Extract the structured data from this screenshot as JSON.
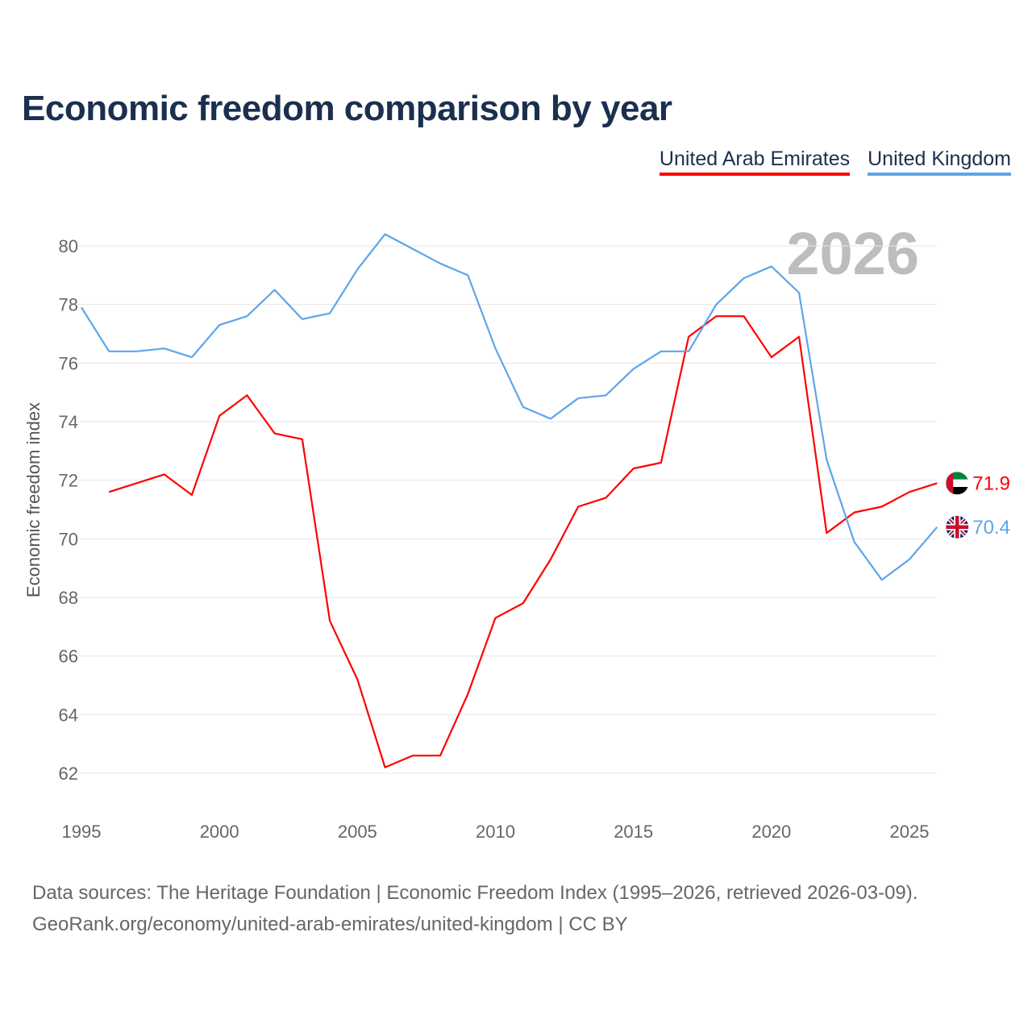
{
  "chart_data": {
    "type": "line",
    "title": "Economic freedom comparison by year",
    "xlabel": "",
    "ylabel": "Economic freedom index",
    "xlim": [
      1995,
      2026
    ],
    "ylim": [
      61,
      81
    ],
    "xticks": [
      1995,
      2000,
      2005,
      2010,
      2015,
      2020,
      2025
    ],
    "yticks": [
      62,
      64,
      66,
      68,
      70,
      72,
      74,
      76,
      78,
      80
    ],
    "grid": true,
    "legend_position": "top-right",
    "watermark_year": "2026",
    "series": [
      {
        "name": "United Arab Emirates",
        "color": "#ff0000",
        "end_label": "71.9",
        "flag": "uae-flag",
        "x": [
          1996,
          1997,
          1998,
          1999,
          2000,
          2001,
          2002,
          2003,
          2004,
          2005,
          2006,
          2007,
          2008,
          2009,
          2010,
          2011,
          2012,
          2013,
          2014,
          2015,
          2016,
          2017,
          2018,
          2019,
          2020,
          2021,
          2022,
          2023,
          2024,
          2025,
          2026
        ],
        "y": [
          71.6,
          71.9,
          72.2,
          71.5,
          74.2,
          74.9,
          73.6,
          73.4,
          67.2,
          65.2,
          62.2,
          62.6,
          62.6,
          64.7,
          67.3,
          67.8,
          69.3,
          71.1,
          71.4,
          72.4,
          72.6,
          76.9,
          77.6,
          77.6,
          76.2,
          76.9,
          70.2,
          70.9,
          71.1,
          71.6,
          71.9
        ]
      },
      {
        "name": "United Kingdom",
        "color": "#5da5ea",
        "end_label": "70.4",
        "flag": "uk-flag",
        "x": [
          1995,
          1996,
          1997,
          1998,
          1999,
          2000,
          2001,
          2002,
          2003,
          2004,
          2005,
          2006,
          2007,
          2008,
          2009,
          2010,
          2011,
          2012,
          2013,
          2014,
          2015,
          2016,
          2017,
          2018,
          2019,
          2020,
          2021,
          2022,
          2023,
          2024,
          2025,
          2026
        ],
        "y": [
          77.9,
          76.4,
          76.4,
          76.5,
          76.2,
          77.3,
          77.6,
          78.5,
          77.5,
          77.7,
          79.2,
          80.4,
          79.9,
          79.4,
          79.0,
          76.5,
          74.5,
          74.1,
          74.8,
          74.9,
          75.8,
          76.4,
          76.4,
          78.0,
          78.9,
          79.3,
          78.4,
          72.7,
          69.9,
          68.6,
          69.3,
          70.4
        ]
      }
    ]
  },
  "source": {
    "line1": "Data sources: The Heritage Foundation | Economic Freedom Index (1995–2026, retrieved 2026-03-09).",
    "line2": "GeoRank.org/economy/united-arab-emirates/united-kingdom | CC BY"
  }
}
